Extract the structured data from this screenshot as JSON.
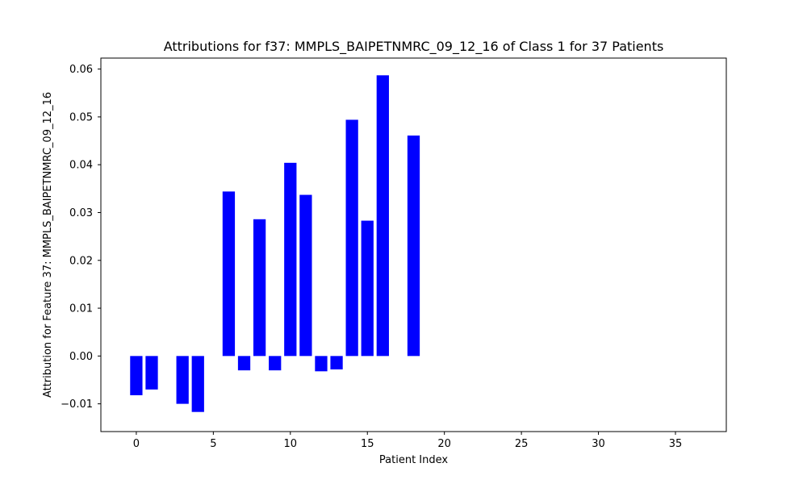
{
  "chart_data": {
    "type": "bar",
    "title": "Attributions for f37: MMPLS_BAIPETNMRC_09_12_16 of Class 1 for 37 Patients",
    "xlabel": "Patient Index",
    "ylabel": "Attribution for Feature 37: MMPLS_BAIPETNMRC_09_12_16",
    "x": [
      0,
      1,
      2,
      3,
      4,
      5,
      6,
      7,
      8,
      9,
      10,
      11,
      12,
      13,
      14,
      15,
      16,
      17,
      18,
      19,
      20,
      21,
      22,
      23,
      24,
      25,
      26,
      27,
      28,
      29,
      30,
      31,
      32,
      33,
      34,
      35,
      36
    ],
    "values": [
      -0.0082,
      -0.007,
      0,
      -0.01,
      -0.0117,
      0,
      0.0344,
      -0.003,
      0.0286,
      -0.003,
      0.0404,
      0.0337,
      -0.0032,
      -0.0028,
      0.0494,
      0.0283,
      0.0587,
      0,
      0.0461,
      0,
      0,
      0,
      0,
      0,
      0,
      0,
      0,
      0,
      0,
      0,
      0,
      0,
      0,
      0,
      0,
      0,
      0
    ],
    "xlim": [
      -2.3,
      38.3
    ],
    "ylim": [
      -0.0158,
      0.0623
    ],
    "xticks": [
      0,
      5,
      10,
      15,
      20,
      25,
      30,
      35
    ],
    "yticks": [
      -0.01,
      0.0,
      0.01,
      0.02,
      0.03,
      0.04,
      0.05,
      0.06
    ],
    "xtick_labels": [
      "0",
      "5",
      "10",
      "15",
      "20",
      "25",
      "30",
      "35"
    ],
    "ytick_labels": [
      "−0.01",
      "0.00",
      "0.01",
      "0.02",
      "0.03",
      "0.04",
      "0.05",
      "0.06"
    ],
    "bar_color": "#0000ff",
    "grid": false,
    "legend": "none"
  }
}
